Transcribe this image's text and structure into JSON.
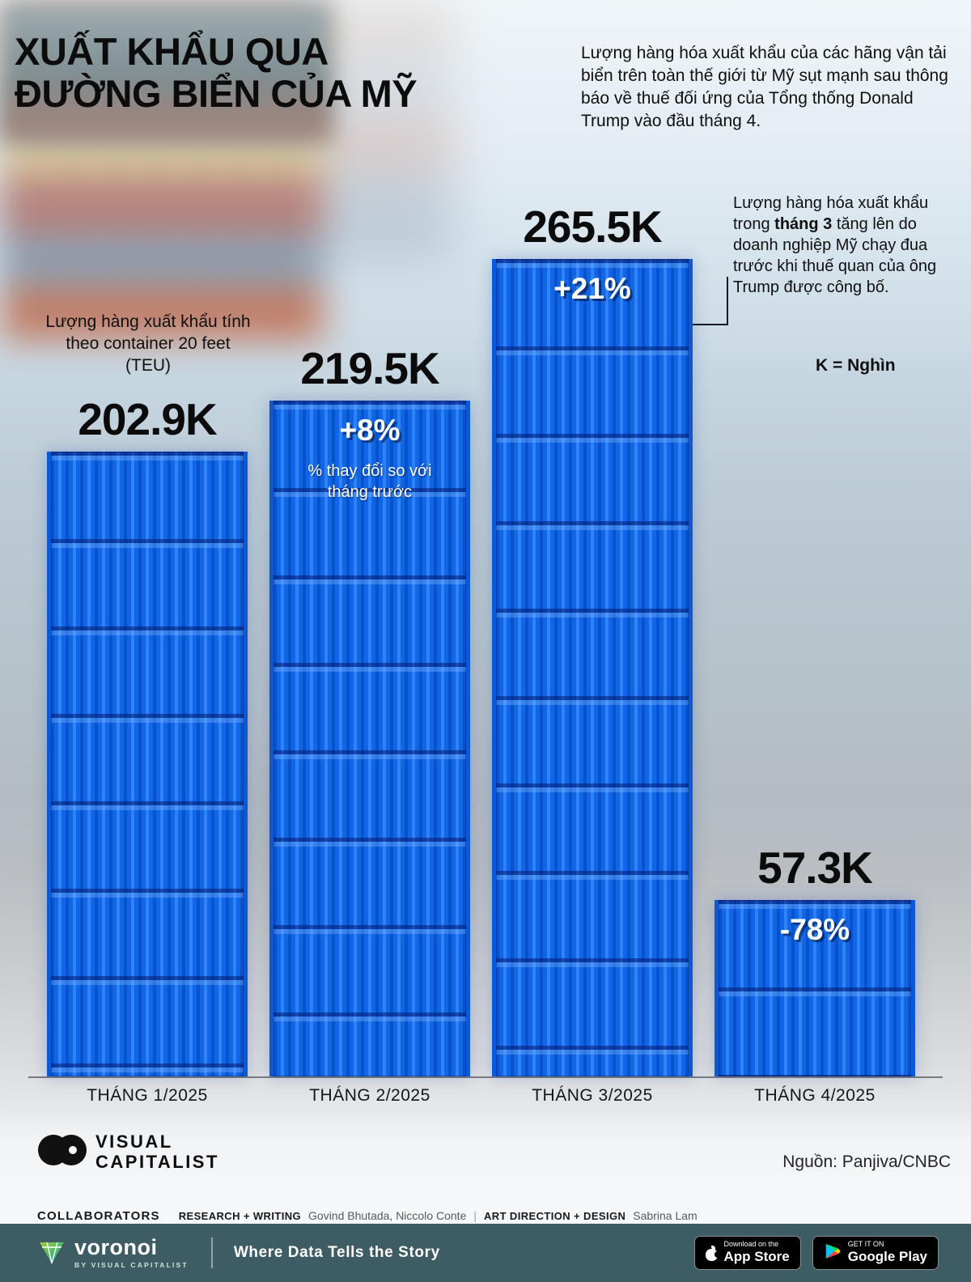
{
  "header": {
    "title_line1": "XUẤT KHẨU QUA",
    "title_line2": "ĐƯỜNG BIỂN CỦA MỸ",
    "intro": "Lượng hàng hóa xuất khẩu của các hãng vận tải biển trên toàn thế giới từ Mỹ sụt mạnh sau thông báo về thuế đối ứng của Tổng thống Donald Trump vào đầu tháng 4."
  },
  "annotations": {
    "teu_note": "Lượng hàng xuất khẩu tính theo container 20 feet (TEU)",
    "pct_note": "% thay đổi so với tháng trước",
    "march_note_prefix": "Lượng hàng hóa xuất khẩu trong ",
    "march_note_bold": "tháng 3",
    "march_note_suffix": " tăng lên do doanh nghiệp Mỹ chạy đua trước khi thuế quan của ông Trump được công bố.",
    "k_note": "K = Nghìn"
  },
  "chart_data": {
    "type": "bar",
    "title": "Xuất khẩu qua đường biển của Mỹ (TEU)",
    "categories": [
      "THÁNG 1/2025",
      "THÁNG 2/2025",
      "THÁNG 3/2025",
      "THÁNG 4/2025"
    ],
    "values": [
      202.9,
      219.5,
      265.5,
      57.3
    ],
    "value_labels": [
      "202.9K",
      "219.5K",
      "265.5K",
      "57.3K"
    ],
    "pct_change_labels": [
      "",
      "+8%",
      "+21%",
      "-78%"
    ],
    "unit": "nghìn TEU (K = Nghìn)",
    "xlabel": "",
    "ylabel": "Lượng hàng xuất khẩu (container 20 feet, TEU)",
    "ylim": [
      0,
      280
    ],
    "bar_color": "#0E63E6",
    "grid": false,
    "legend": "none"
  },
  "footer": {
    "logo_line1": "VISUAL",
    "logo_line2": "CAPITALIST",
    "source": "Nguồn: Panjiva/CNBC",
    "collaborators_label": "COLLABORATORS",
    "research_label": "RESEARCH + WRITING",
    "research_names": "Govind Bhutada, Niccolo Conte",
    "separator": "|",
    "design_label": "ART DIRECTION + DESIGN",
    "design_name": "Sabrina Lam"
  },
  "bottombar": {
    "brand": "voronoi",
    "brand_sub": "BY VISUAL CAPITALIST",
    "tagline": "Where Data Tells the Story",
    "appstore_line1": "Download on the",
    "appstore_line2": "App Store",
    "googleplay_line1": "GET IT ON",
    "googleplay_line2": "Google Play"
  },
  "colors": {
    "container_blue": "#0E63E6",
    "bottombar_bg": "#3E5C64",
    "voronoi_green": "#8DC63F"
  }
}
